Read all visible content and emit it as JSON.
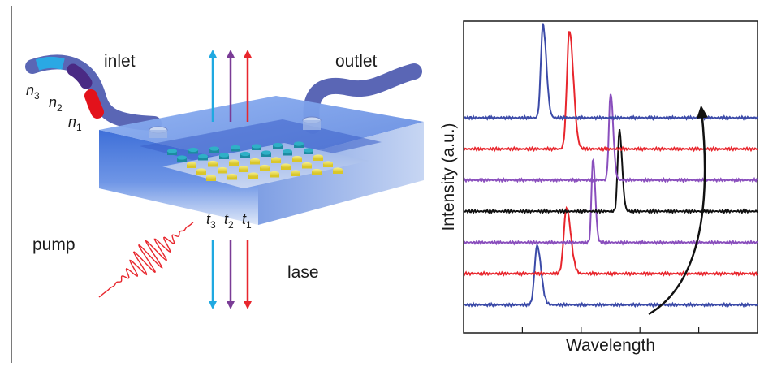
{
  "diagram": {
    "labels": {
      "inlet": "inlet",
      "outlet": "outlet",
      "pump": "pump",
      "lase": "lase"
    },
    "refractive_indices": [
      {
        "base": "n",
        "sub": "3"
      },
      {
        "base": "n",
        "sub": "2"
      },
      {
        "base": "n",
        "sub": "1"
      }
    ],
    "thicknesses": [
      {
        "base": "t",
        "sub": "3"
      },
      {
        "base": "t",
        "sub": "2"
      },
      {
        "base": "t",
        "sub": "1"
      }
    ],
    "colors": {
      "cyan": "#1fa9e1",
      "purple": "#7a3c96",
      "red": "#e8262d",
      "tubing": "#5a66b5",
      "chip": "#3d6fd6"
    }
  },
  "chart_data": {
    "type": "line",
    "xlabel": "Wavelength",
    "ylabel": "Intensity (a.u.)",
    "x_range": [
      0,
      1
    ],
    "series": [
      {
        "color": "#3b4aa8",
        "baseline": 0.09,
        "peak": 0.25,
        "height": 0.19,
        "width": 0.012
      },
      {
        "color": "#e8262d",
        "baseline": 0.19,
        "peak": 0.35,
        "height": 0.21,
        "width": 0.013
      },
      {
        "color": "#8a4fbd",
        "baseline": 0.29,
        "peak": 0.44,
        "height": 0.27,
        "width": 0.007
      },
      {
        "color": "#111111",
        "baseline": 0.39,
        "peak": 0.53,
        "height": 0.26,
        "width": 0.008
      },
      {
        "color": "#8a4fbd",
        "baseline": 0.49,
        "peak": 0.5,
        "height": 0.28,
        "width": 0.008
      },
      {
        "color": "#e8262d",
        "baseline": 0.59,
        "peak": 0.36,
        "height": 0.38,
        "width": 0.012
      },
      {
        "color": "#3b4aa8",
        "baseline": 0.69,
        "peak": 0.27,
        "height": 0.3,
        "width": 0.01
      }
    ],
    "arrow": {
      "from": [
        0.63,
        0.06
      ],
      "to": [
        0.81,
        0.71
      ],
      "color": "#111111"
    },
    "grid": false
  }
}
